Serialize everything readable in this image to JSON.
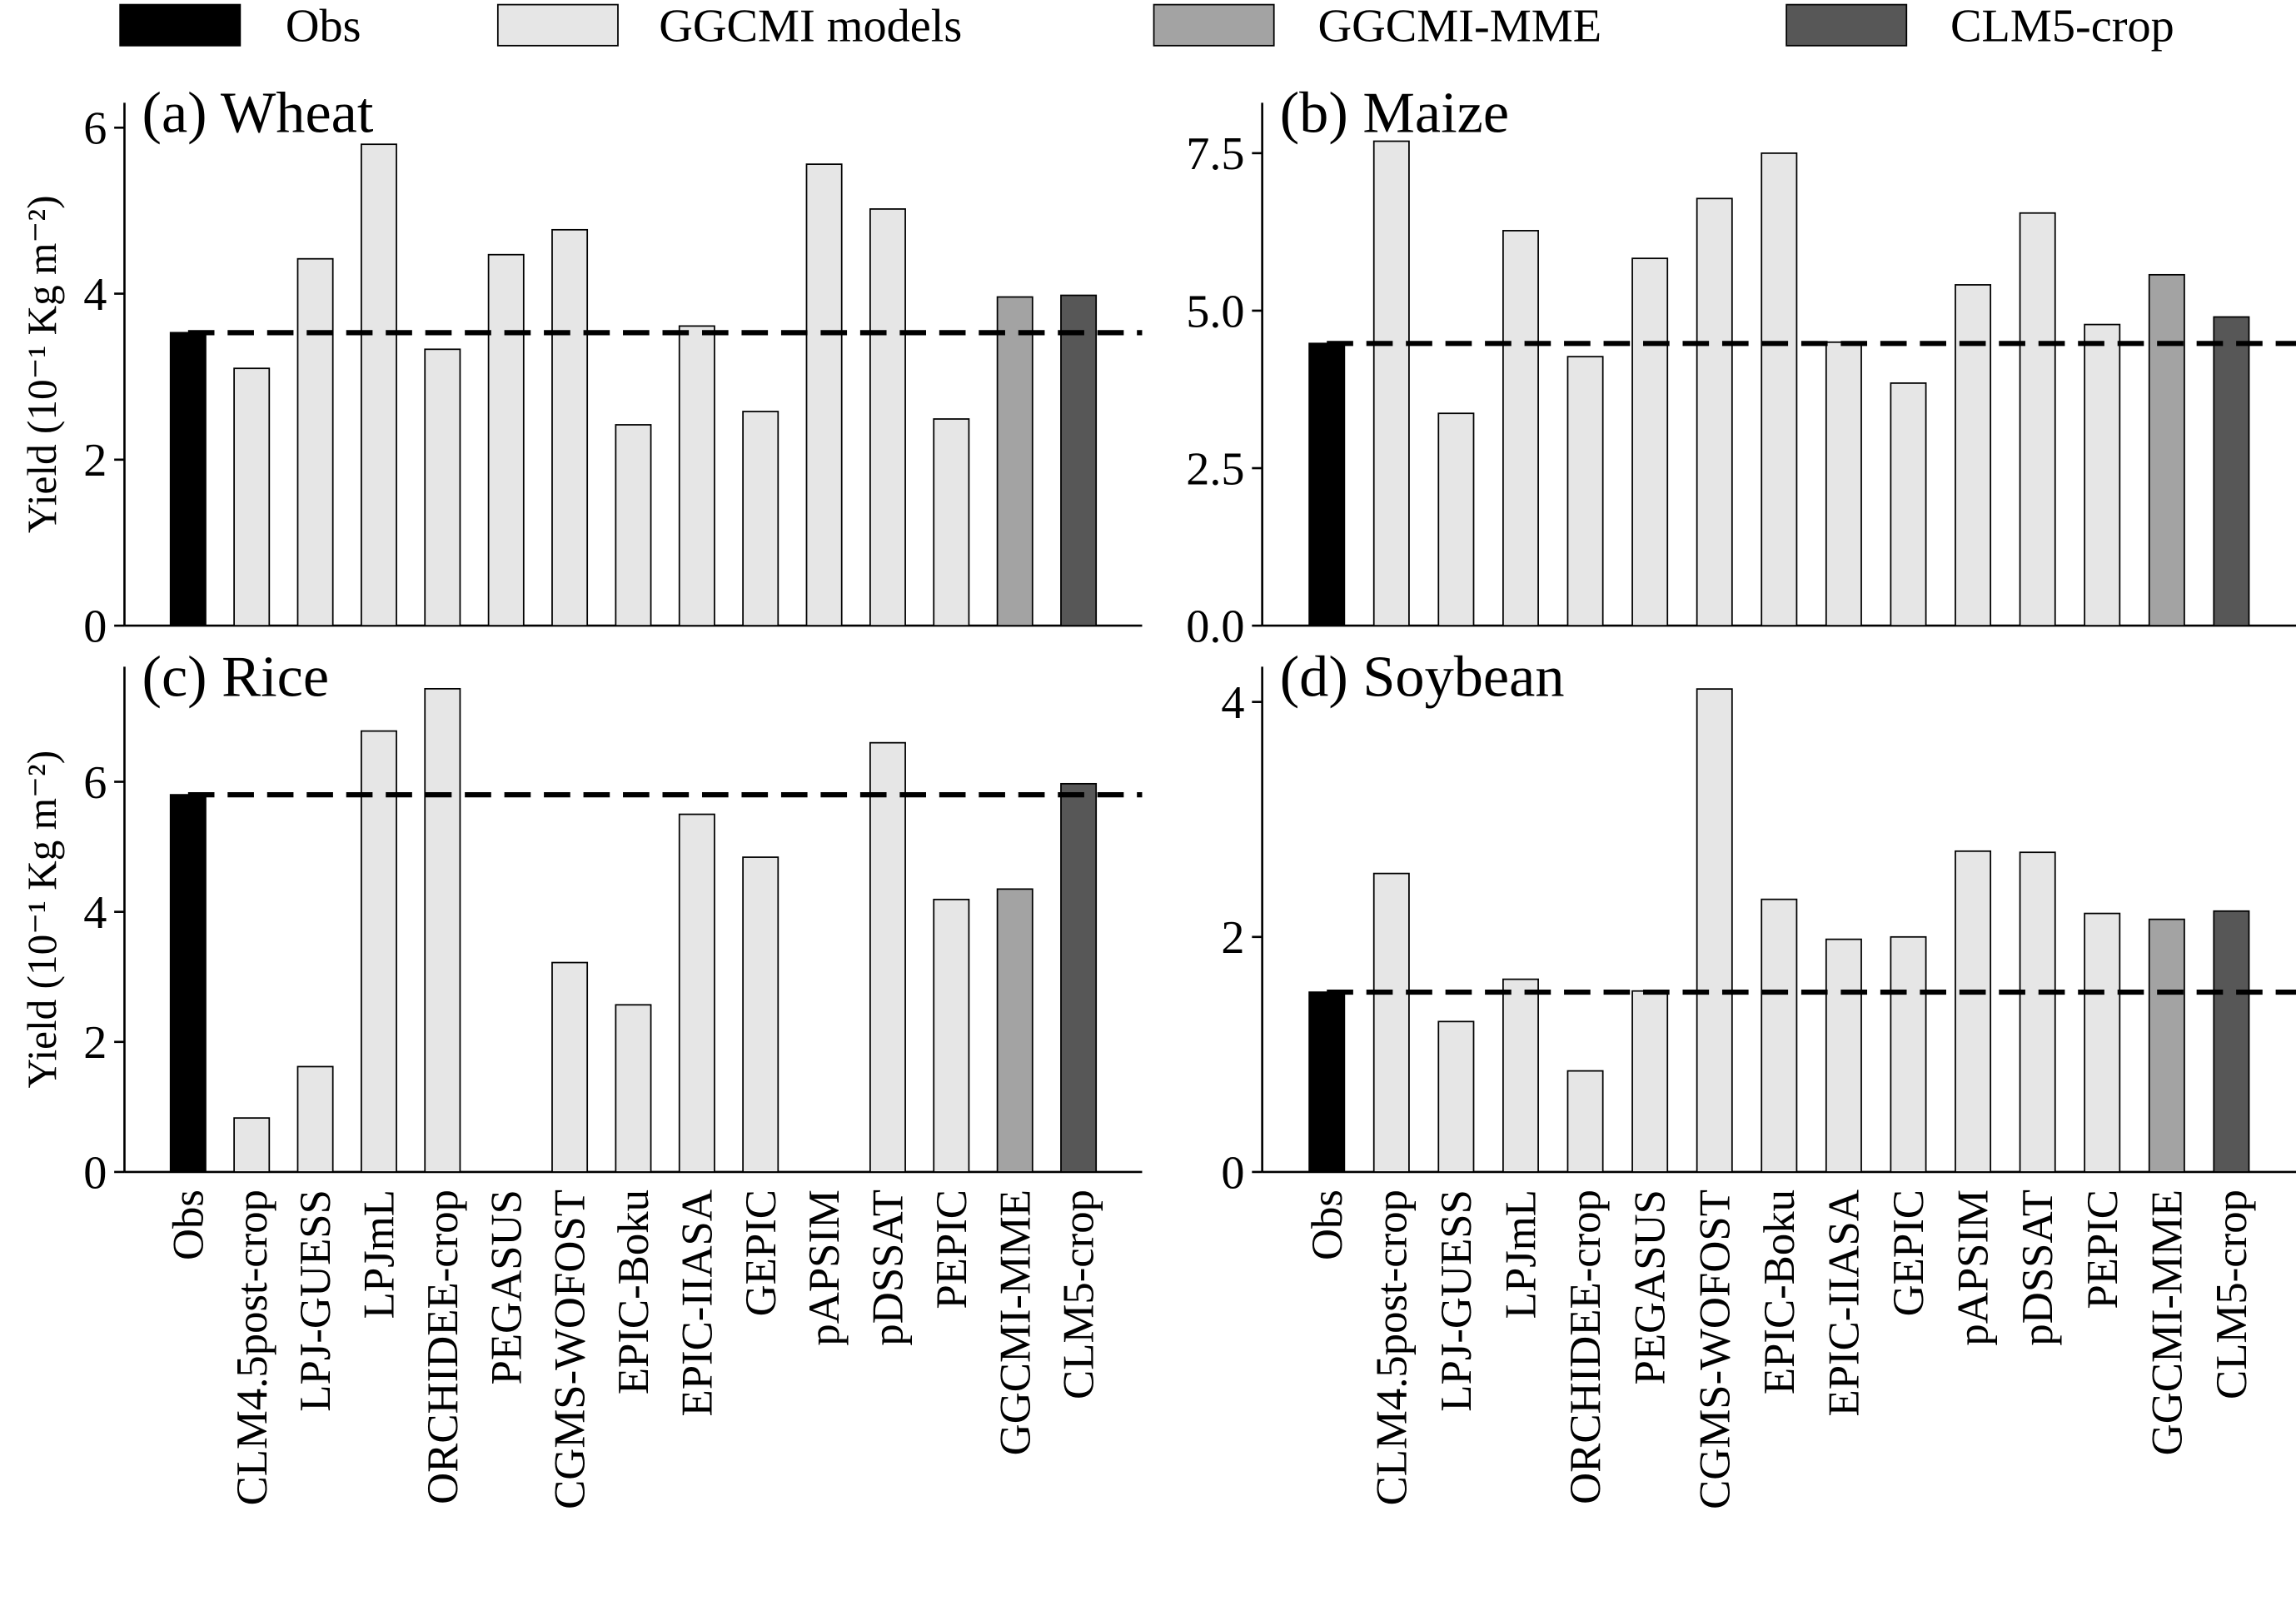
{
  "legend": [
    {
      "name": "Obs",
      "color": "#000000"
    },
    {
      "name": "GGCMI models",
      "color": "#e6e6e6"
    },
    {
      "name": "GGCMI-MME",
      "color": "#a3a3a3"
    },
    {
      "name": "CLM5-crop",
      "color": "#575757"
    }
  ],
  "chart_data": [
    {
      "type": "bar",
      "title": "(a) Wheat",
      "ylabel": "Yield (10⁻¹ Kg m⁻²)",
      "values": [
        3.53,
        3.1,
        4.42,
        5.8,
        3.33,
        4.47,
        4.77,
        2.42,
        3.61,
        2.58,
        5.56,
        5.02,
        2.49,
        3.96,
        3.98
      ],
      "colors": [
        "#000000",
        "#e6e6e6",
        "#e6e6e6",
        "#e6e6e6",
        "#e6e6e6",
        "#e6e6e6",
        "#e6e6e6",
        "#e6e6e6",
        "#e6e6e6",
        "#e6e6e6",
        "#e6e6e6",
        "#e6e6e6",
        "#e6e6e6",
        "#a3a3a3",
        "#575757"
      ],
      "ylim": [
        0,
        6.3
      ],
      "yticks": [
        0,
        2,
        4,
        6
      ]
    },
    {
      "type": "bar",
      "title": "(b) Maize",
      "values": [
        4.48,
        7.69,
        3.37,
        6.27,
        4.27,
        5.83,
        6.78,
        7.5,
        4.5,
        3.85,
        5.41,
        6.55,
        4.78,
        5.57,
        4.9
      ],
      "colors": [
        "#000000",
        "#e6e6e6",
        "#e6e6e6",
        "#e6e6e6",
        "#e6e6e6",
        "#e6e6e6",
        "#e6e6e6",
        "#e6e6e6",
        "#e6e6e6",
        "#e6e6e6",
        "#e6e6e6",
        "#e6e6e6",
        "#e6e6e6",
        "#a3a3a3",
        "#575757"
      ],
      "ylim": [
        0,
        8.3
      ],
      "yticks": [
        {
          "value": 0,
          "label": "0.0"
        },
        2.5,
        {
          "value": 5,
          "label": "5.0"
        },
        7.5
      ]
    },
    {
      "type": "bar",
      "title": "(c) Rice",
      "ylabel": "Yield (10⁻¹ Kg m⁻²)",
      "categories": [
        "Obs",
        "CLM4.5post-crop",
        "LPJ-GUESS",
        "LPJmL",
        "ORCHIDEE-crop",
        "PEGASUS",
        "CGMS-WOFOST",
        "EPIC-Boku",
        "EPIC-IIASA",
        "GEPIC",
        "pAPSIM",
        "pDSSAT",
        "PEPIC",
        "GGCMI-MME",
        "CLM5-crop"
      ],
      "values": [
        5.8,
        0.83,
        1.62,
        6.78,
        7.43,
        0,
        3.22,
        2.57,
        5.5,
        4.84,
        0,
        6.6,
        4.19,
        4.35,
        5.97
      ],
      "colors": [
        "#000000",
        "#e6e6e6",
        "#e6e6e6",
        "#e6e6e6",
        "#e6e6e6",
        "#e6e6e6",
        "#e6e6e6",
        "#e6e6e6",
        "#e6e6e6",
        "#e6e6e6",
        "#e6e6e6",
        "#e6e6e6",
        "#e6e6e6",
        "#a3a3a3",
        "#575757"
      ],
      "ylim": [
        0,
        7.77
      ],
      "yticks": [
        0,
        2,
        4,
        6
      ]
    },
    {
      "type": "bar",
      "title": "(d) Soybean",
      "categories": [
        "Obs",
        "CLM4.5post-crop",
        "LPJ-GUESS",
        "LPJmL",
        "ORCHIDEE-crop",
        "PEGASUS",
        "CGMS-WOFOST",
        "EPIC-Boku",
        "EPIC-IIASA",
        "GEPIC",
        "pAPSIM",
        "pDSSAT",
        "PEPIC",
        "GGCMI-MME",
        "CLM5-crop"
      ],
      "values": [
        1.53,
        2.54,
        1.28,
        1.64,
        0.86,
        1.54,
        4.11,
        2.32,
        1.98,
        2.0,
        2.73,
        2.72,
        2.2,
        2.15,
        2.22
      ],
      "colors": [
        "#000000",
        "#e6e6e6",
        "#e6e6e6",
        "#e6e6e6",
        "#e6e6e6",
        "#e6e6e6",
        "#e6e6e6",
        "#e6e6e6",
        "#e6e6e6",
        "#e6e6e6",
        "#e6e6e6",
        "#e6e6e6",
        "#e6e6e6",
        "#a3a3a3",
        "#575757"
      ],
      "ylim": [
        0,
        4.3
      ],
      "yticks": [
        0,
        2,
        4
      ]
    }
  ]
}
